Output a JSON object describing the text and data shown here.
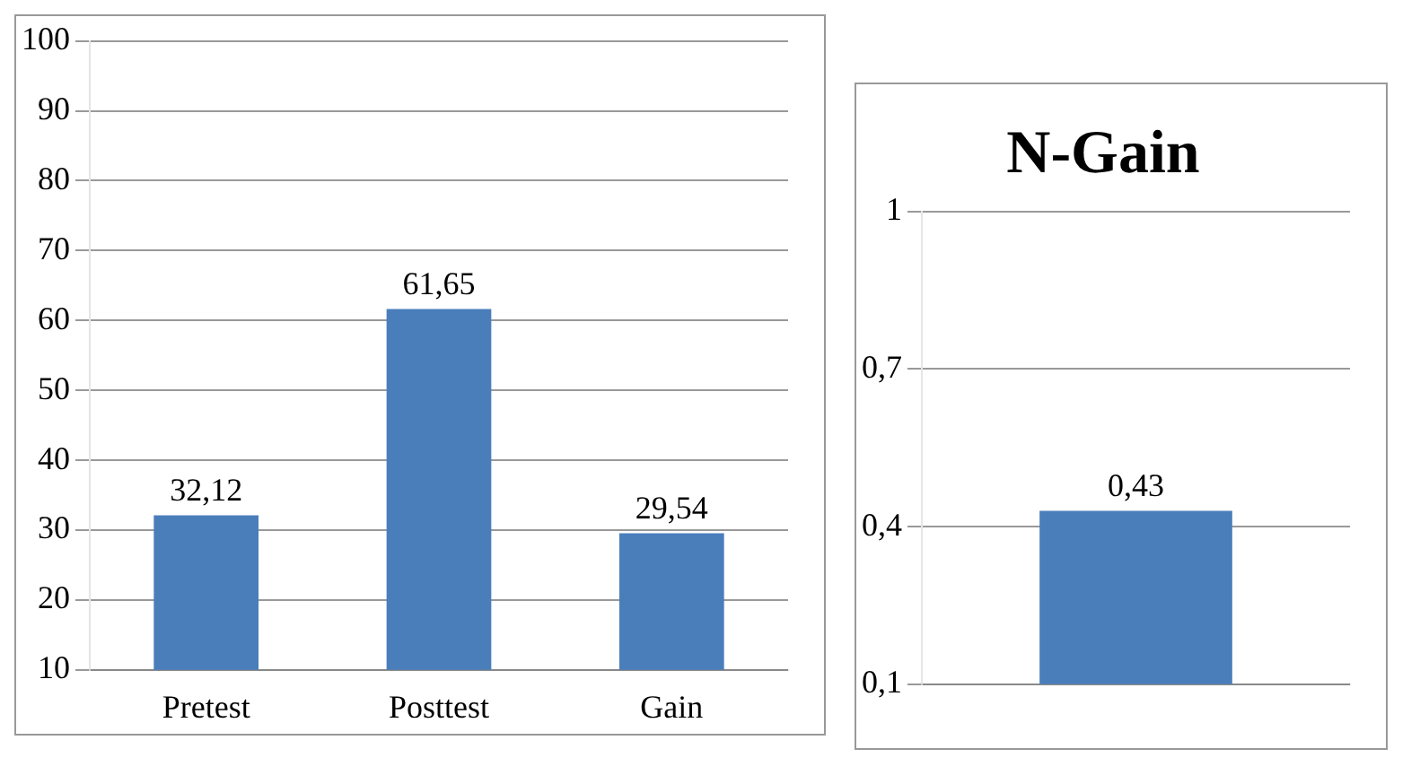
{
  "chart_data": [
    {
      "type": "bar",
      "categories": [
        "Pretest",
        "Posttest",
        "Gain"
      ],
      "values": [
        32.12,
        61.65,
        29.54
      ],
      "value_labels": [
        "32,12",
        "61,65",
        "29,54"
      ],
      "color": "#4a7ebb",
      "ylim": [
        10,
        100
      ],
      "yticks": [
        10,
        20,
        30,
        40,
        50,
        60,
        70,
        80,
        90,
        100
      ],
      "grid": "y",
      "legend": false
    },
    {
      "type": "bar",
      "title": "N-Gain",
      "categories": [
        null
      ],
      "values": [
        0.43
      ],
      "value_labels": [
        "0,43"
      ],
      "color": "#4a7ebb",
      "ylim": [
        0.1,
        1
      ],
      "yticks": [
        {
          "value": 0.1,
          "label": "0,1"
        },
        {
          "value": 0.4,
          "label": "0,4"
        },
        {
          "value": 0.7,
          "label": "0,7"
        },
        {
          "value": 1,
          "label": "1"
        }
      ],
      "grid": "y",
      "legend": false
    }
  ]
}
